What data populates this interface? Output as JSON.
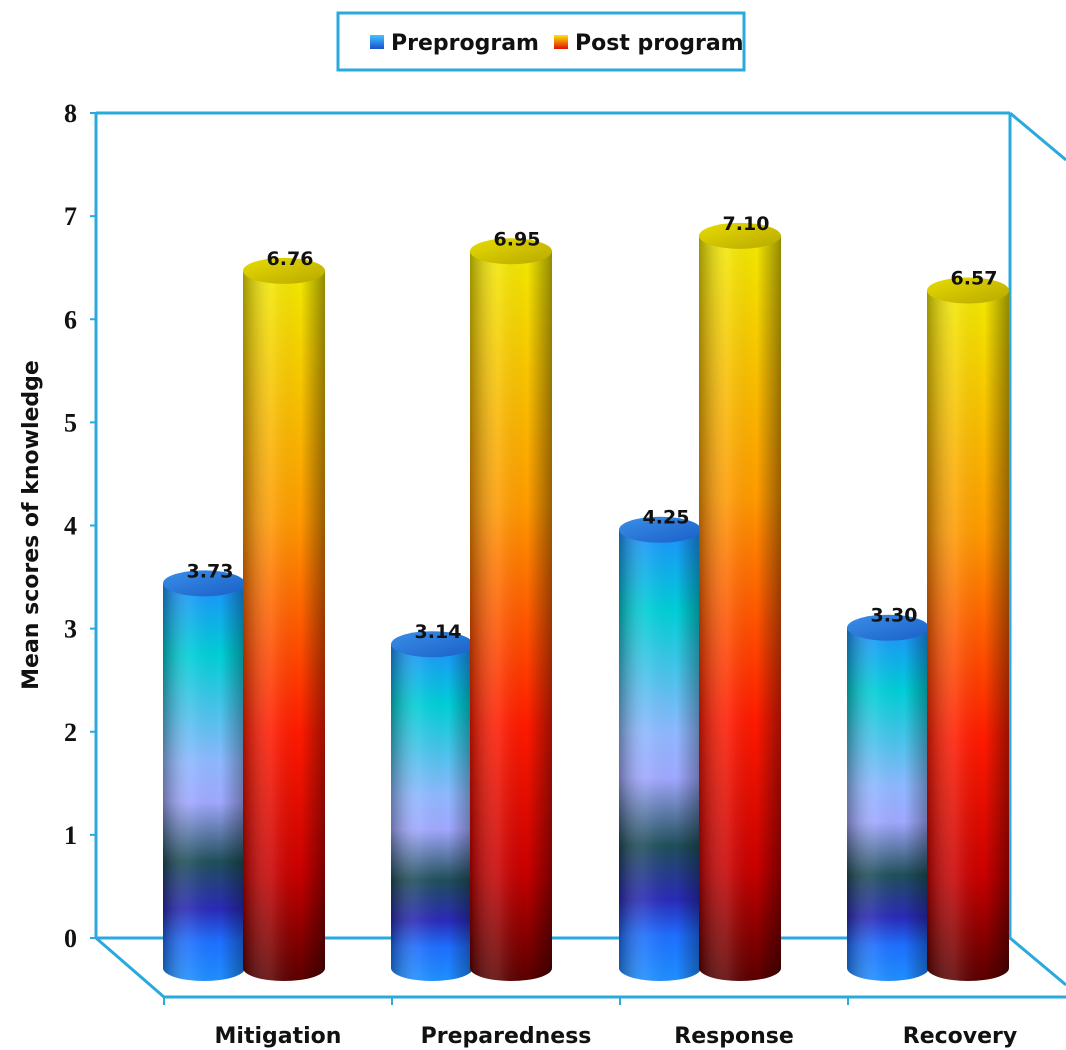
{
  "chart_data": {
    "type": "bar",
    "categories": [
      "Mitigation",
      "Preparedness",
      "Response",
      "Recovery"
    ],
    "series": [
      {
        "name": "Preprogram",
        "values": [
          3.73,
          3.14,
          4.25,
          3.3
        ]
      },
      {
        "name": "Post program",
        "values": [
          6.76,
          6.95,
          7.1,
          6.57
        ]
      }
    ],
    "data_labels": [
      [
        "3.73",
        "3.14",
        "4.25",
        "3.30"
      ],
      [
        "6.76",
        "6.95",
        "7.10",
        "6.57"
      ]
    ],
    "ylabel": "Mean scores of knowledge",
    "xlabel": "",
    "ylim": [
      0,
      8
    ],
    "yticks": [
      "0",
      "1",
      "2",
      "3",
      "4",
      "5",
      "6",
      "7",
      "8"
    ],
    "legend": "top-center",
    "style": "3d-cylinder",
    "colors": {
      "frame": "#29a9dc",
      "preprogram_top": "#1e6fd8",
      "postprogram_top": "#d4c400"
    }
  }
}
